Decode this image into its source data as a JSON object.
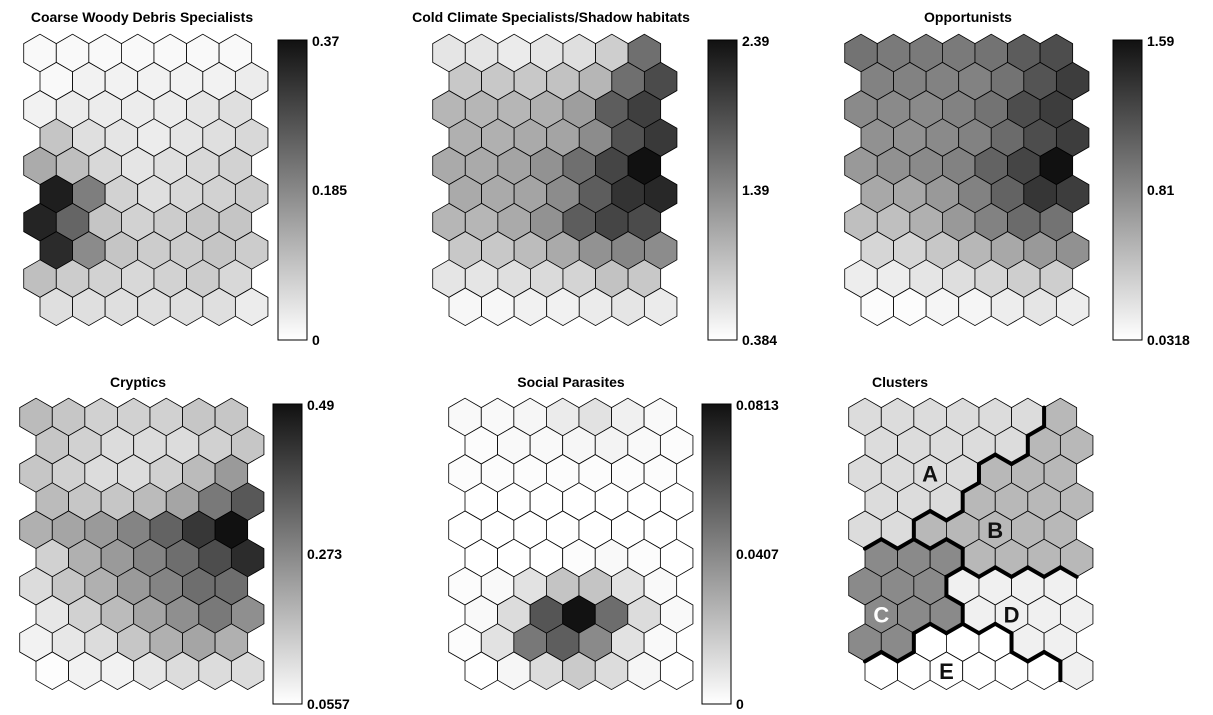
{
  "chart_data": [
    {
      "type": "heatmap",
      "title": "Coarse Woody Debris Specialists",
      "grid": {
        "rows": 10,
        "cols": 7
      },
      "colorbar": {
        "min": 0,
        "max": 0.37,
        "ticks": [
          "0.37",
          "0.185",
          "0"
        ]
      },
      "values": [
        [
          0.01,
          0.01,
          0.01,
          0.01,
          0.01,
          0.01,
          0.01
        ],
        [
          0.01,
          0.02,
          0.02,
          0.02,
          0.02,
          0.02,
          0.03
        ],
        [
          0.02,
          0.03,
          0.03,
          0.03,
          0.03,
          0.04,
          0.05
        ],
        [
          0.09,
          0.05,
          0.04,
          0.03,
          0.04,
          0.05,
          0.06
        ],
        [
          0.13,
          0.1,
          0.06,
          0.04,
          0.05,
          0.06,
          0.07
        ],
        [
          0.35,
          0.2,
          0.07,
          0.05,
          0.06,
          0.07,
          0.08
        ],
        [
          0.34,
          0.24,
          0.09,
          0.07,
          0.08,
          0.09,
          0.09
        ],
        [
          0.33,
          0.18,
          0.09,
          0.08,
          0.08,
          0.09,
          0.08
        ],
        [
          0.1,
          0.08,
          0.07,
          0.06,
          0.07,
          0.08,
          0.06
        ],
        [
          0.05,
          0.05,
          0.05,
          0.05,
          0.05,
          0.05,
          0.03
        ]
      ]
    },
    {
      "type": "heatmap",
      "title": "Cold Climate Specialists/Shadow habitats",
      "grid": {
        "rows": 10,
        "cols": 7
      },
      "colorbar": {
        "min": 0.384,
        "max": 2.39,
        "ticks": [
          "2.39",
          "1.39",
          "0.384"
        ]
      },
      "values": [
        [
          0.6,
          0.6,
          0.55,
          0.6,
          0.65,
          0.8,
          1.6
        ],
        [
          0.85,
          0.85,
          0.85,
          0.9,
          1.0,
          1.6,
          1.9
        ],
        [
          1.0,
          1.0,
          1.0,
          1.05,
          1.2,
          1.75,
          2.0
        ],
        [
          1.05,
          1.05,
          1.1,
          1.15,
          1.35,
          1.85,
          2.05
        ],
        [
          1.1,
          1.1,
          1.15,
          1.3,
          1.6,
          1.95,
          2.39
        ],
        [
          1.1,
          1.1,
          1.15,
          1.35,
          1.75,
          2.1,
          2.2
        ],
        [
          1.0,
          1.0,
          1.1,
          1.3,
          1.75,
          1.95,
          1.9
        ],
        [
          0.85,
          0.85,
          0.95,
          1.1,
          1.3,
          1.4,
          1.35
        ],
        [
          0.6,
          0.6,
          0.65,
          0.7,
          0.75,
          0.9,
          0.85
        ],
        [
          0.45,
          0.45,
          0.5,
          0.5,
          0.55,
          0.6,
          0.55
        ]
      ]
    },
    {
      "type": "heatmap",
      "title": "Opportunists",
      "grid": {
        "rows": 10,
        "cols": 7
      },
      "colorbar": {
        "min": 0.0318,
        "max": 1.59,
        "ticks": [
          "1.59",
          "0.81",
          "0.0318"
        ]
      },
      "values": [
        [
          0.95,
          0.9,
          0.9,
          0.9,
          0.95,
          1.1,
          1.2
        ],
        [
          0.85,
          0.85,
          0.85,
          0.85,
          0.95,
          1.15,
          1.3
        ],
        [
          0.8,
          0.8,
          0.8,
          0.85,
          0.95,
          1.2,
          1.3
        ],
        [
          0.75,
          0.75,
          0.8,
          0.85,
          1.0,
          1.2,
          1.3
        ],
        [
          0.7,
          0.75,
          0.8,
          0.85,
          1.05,
          1.25,
          1.59
        ],
        [
          0.6,
          0.6,
          0.7,
          0.85,
          1.05,
          1.35,
          1.3
        ],
        [
          0.45,
          0.45,
          0.55,
          0.7,
          0.85,
          1.0,
          0.95
        ],
        [
          0.3,
          0.3,
          0.4,
          0.5,
          0.6,
          0.7,
          0.75
        ],
        [
          0.15,
          0.15,
          0.2,
          0.25,
          0.3,
          0.35,
          0.35
        ],
        [
          0.05,
          0.05,
          0.1,
          0.1,
          0.15,
          0.2,
          0.15
        ]
      ]
    },
    {
      "type": "heatmap",
      "title": "Cryptics",
      "grid": {
        "rows": 10,
        "cols": 7
      },
      "colorbar": {
        "min": 0.0557,
        "max": 0.49,
        "ticks": [
          "0.49",
          "0.273",
          "0.0557"
        ]
      },
      "values": [
        [
          0.18,
          0.16,
          0.14,
          0.14,
          0.14,
          0.16,
          0.16
        ],
        [
          0.16,
          0.14,
          0.12,
          0.12,
          0.12,
          0.14,
          0.16
        ],
        [
          0.16,
          0.14,
          0.12,
          0.12,
          0.14,
          0.18,
          0.24
        ],
        [
          0.18,
          0.16,
          0.16,
          0.18,
          0.22,
          0.3,
          0.36
        ],
        [
          0.2,
          0.22,
          0.24,
          0.28,
          0.34,
          0.42,
          0.49
        ],
        [
          0.14,
          0.2,
          0.24,
          0.28,
          0.32,
          0.38,
          0.44
        ],
        [
          0.12,
          0.16,
          0.2,
          0.24,
          0.28,
          0.32,
          0.32
        ],
        [
          0.1,
          0.14,
          0.18,
          0.22,
          0.26,
          0.3,
          0.26
        ],
        [
          0.08,
          0.1,
          0.12,
          0.16,
          0.2,
          0.22,
          0.2
        ],
        [
          0.06,
          0.08,
          0.08,
          0.1,
          0.12,
          0.12,
          0.12
        ]
      ]
    },
    {
      "type": "heatmap",
      "title": "Social Parasites",
      "grid": {
        "rows": 10,
        "cols": 7
      },
      "colorbar": {
        "min": 0,
        "max": 0.0813,
        "ticks": [
          "0.0813",
          "0.0407",
          "0"
        ]
      },
      "values": [
        [
          0.002,
          0.002,
          0.003,
          0.007,
          0.01,
          0.005,
          0.002
        ],
        [
          0.001,
          0.002,
          0.002,
          0.003,
          0.004,
          0.002,
          0.001
        ],
        [
          0.001,
          0.001,
          0.001,
          0.001,
          0.001,
          0.001,
          0.001
        ],
        [
          0.0,
          0.0,
          0.0,
          0.0,
          0.0,
          0.0,
          0.0
        ],
        [
          0.0,
          0.0,
          0.0,
          0.0,
          0.0,
          0.0,
          0.0
        ],
        [
          0.0,
          0.0,
          0.0,
          0.001,
          0.002,
          0.001,
          0.0
        ],
        [
          0.001,
          0.002,
          0.01,
          0.02,
          0.02,
          0.01,
          0.002
        ],
        [
          0.002,
          0.012,
          0.058,
          0.081,
          0.05,
          0.012,
          0.002
        ],
        [
          0.001,
          0.01,
          0.046,
          0.055,
          0.04,
          0.01,
          0.002
        ],
        [
          0.0,
          0.003,
          0.012,
          0.018,
          0.012,
          0.003,
          0.0
        ]
      ]
    },
    {
      "type": "heatmap",
      "title": "Clusters",
      "grid": {
        "rows": 10,
        "cols": 7
      },
      "cluster_shades": {
        "A": "#dcdcdc",
        "B": "#b8b8b8",
        "C": "#8a8a8a",
        "D": "#f0f0f0",
        "E": "#ffffff"
      },
      "assignments": [
        [
          "A",
          "A",
          "A",
          "A",
          "A",
          "A",
          "B"
        ],
        [
          "A",
          "A",
          "A",
          "A",
          "A",
          "B",
          "B"
        ],
        [
          "A",
          "A",
          "A",
          "A",
          "B",
          "B",
          "B"
        ],
        [
          "A",
          "A",
          "A",
          "B",
          "B",
          "B",
          "B"
        ],
        [
          "A",
          "A",
          "B",
          "B",
          "B",
          "B",
          "B"
        ],
        [
          "C",
          "C",
          "C",
          "B",
          "B",
          "B",
          "B"
        ],
        [
          "C",
          "C",
          "C",
          "D",
          "D",
          "D",
          "D"
        ],
        [
          "C",
          "C",
          "C",
          "D",
          "D",
          "D",
          "D"
        ],
        [
          "C",
          "C",
          "E",
          "E",
          "E",
          "D",
          "D"
        ],
        [
          "E",
          "E",
          "E",
          "E",
          "E",
          "E",
          "D"
        ]
      ],
      "labels": [
        {
          "text": "A",
          "color": "#111111",
          "row": 2,
          "col": 2
        },
        {
          "text": "B",
          "color": "#111111",
          "row": 4,
          "col": 4
        },
        {
          "text": "C",
          "color": "#ffffff",
          "row": 7,
          "col": 0
        },
        {
          "text": "D",
          "color": "#111111",
          "row": 7,
          "col": 4
        },
        {
          "text": "E",
          "color": "#111111",
          "row": 9,
          "col": 2
        }
      ]
    }
  ]
}
